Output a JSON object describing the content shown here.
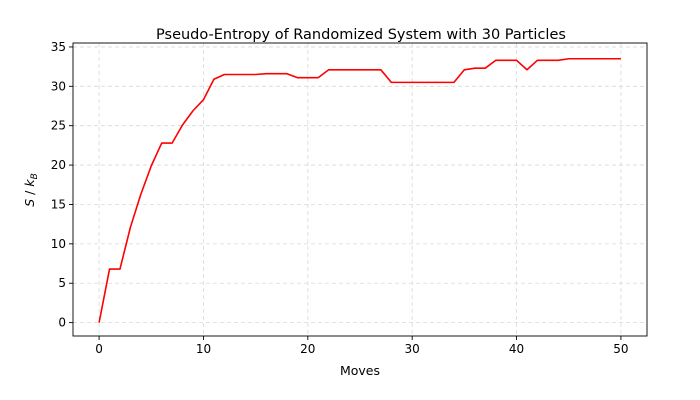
{
  "chart_data": {
    "type": "line",
    "title": "Pseudo-Entropy of Randomized System with 30 Particles",
    "xlabel": "Moves",
    "ylabel": "S / k_B",
    "xlim": [
      -2.5,
      52.5
    ],
    "ylim": [
      -1.7,
      35.5
    ],
    "xticks": [
      0,
      10,
      20,
      30,
      40,
      50
    ],
    "yticks": [
      0,
      5,
      10,
      15,
      20,
      25,
      30,
      35
    ],
    "grid": true,
    "series": [
      {
        "color": "#ff0000",
        "x": [
          0,
          1,
          2,
          3,
          4,
          5,
          6,
          7,
          8,
          9,
          10,
          11,
          12,
          13,
          14,
          15,
          16,
          17,
          18,
          19,
          20,
          21,
          22,
          23,
          24,
          25,
          26,
          27,
          28,
          29,
          30,
          31,
          32,
          33,
          34,
          35,
          36,
          37,
          38,
          39,
          40,
          41,
          42,
          43,
          44,
          45,
          46,
          47,
          48,
          49,
          50
        ],
        "y": [
          0,
          6.8,
          6.8,
          12.1,
          16.3,
          19.9,
          22.8,
          22.8,
          25.1,
          26.9,
          28.3,
          30.9,
          31.5,
          31.5,
          31.5,
          31.5,
          31.6,
          31.6,
          31.6,
          31.1,
          31.1,
          31.1,
          32.1,
          32.1,
          32.1,
          32.1,
          32.1,
          32.1,
          30.5,
          30.5,
          30.5,
          30.5,
          30.5,
          30.5,
          30.5,
          32.1,
          32.3,
          32.3,
          33.3,
          33.3,
          33.3,
          32.1,
          33.3,
          33.3,
          33.3,
          33.5,
          33.5,
          33.5,
          33.5,
          33.5,
          33.5
        ]
      }
    ]
  }
}
